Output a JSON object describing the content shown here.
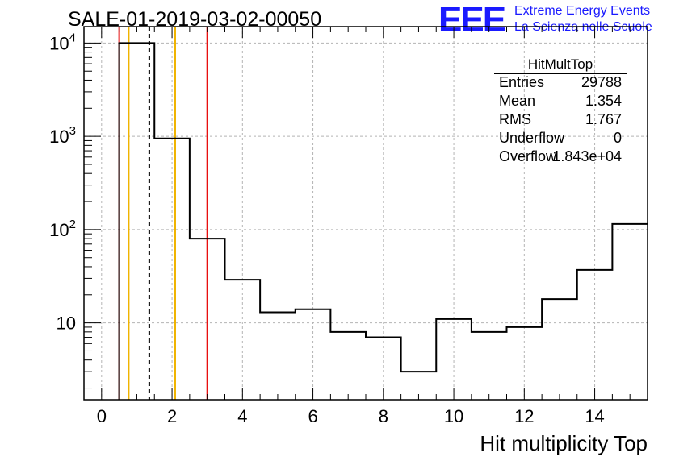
{
  "chart_data": {
    "type": "bar",
    "title": "SALE-01-2019-03-02-00050",
    "xlabel": "Hit multiplicity Top",
    "ylabel": "",
    "xlim": [
      -0.5,
      15.5
    ],
    "ylim": [
      1.5,
      15000
    ],
    "yscale": "log",
    "x_ticks": [
      "0",
      "2",
      "4",
      "6",
      "8",
      "10",
      "12",
      "14"
    ],
    "x_tick_values": [
      0,
      2,
      4,
      6,
      8,
      10,
      12,
      14
    ],
    "y_ticks": [
      {
        "value": 10,
        "base": "10",
        "exp": ""
      },
      {
        "value": 100,
        "base": "10",
        "exp": "2"
      },
      {
        "value": 1000,
        "base": "10",
        "exp": "3"
      },
      {
        "value": 10000,
        "base": "10",
        "exp": "4"
      }
    ],
    "grid": true,
    "bin_edges": [
      0.5,
      1.5,
      2.5,
      3.5,
      4.5,
      5.5,
      6.5,
      7.5,
      8.5,
      9.5,
      10.5,
      11.5,
      12.5,
      13.5,
      14.5,
      15.5
    ],
    "values": [
      10000,
      950,
      80,
      29,
      13,
      14,
      8,
      7,
      3,
      11,
      8,
      9,
      18,
      37,
      115
    ],
    "vertical_lines": [
      {
        "name": "red-line-left",
        "x": 0.5,
        "color": "#e81010",
        "style": "solid"
      },
      {
        "name": "orange-line-left",
        "x": 0.77,
        "color": "#f0b400",
        "style": "solid"
      },
      {
        "name": "mean-dashed-line",
        "x": 1.354,
        "color": "#000000",
        "style": "dashed"
      },
      {
        "name": "orange-line-right",
        "x": 2.09,
        "color": "#f0b400",
        "style": "solid"
      },
      {
        "name": "red-line-right",
        "x": 3.0,
        "color": "#e81010",
        "style": "solid"
      }
    ]
  },
  "stats": {
    "title": "HitMultTop",
    "rows": [
      {
        "label": "Entries",
        "value": "29788"
      },
      {
        "label": "Mean",
        "value": "1.354"
      },
      {
        "label": "RMS",
        "value": "1.767"
      },
      {
        "label": "Underflow",
        "value": "0"
      },
      {
        "label": "Overflow",
        "value": "1.843e+04"
      }
    ]
  },
  "logo": {
    "mark": "EEE",
    "line1": "Extreme Energy Events",
    "line2": "La Scienza nelle Scuole",
    "color": "#1a1aff"
  }
}
